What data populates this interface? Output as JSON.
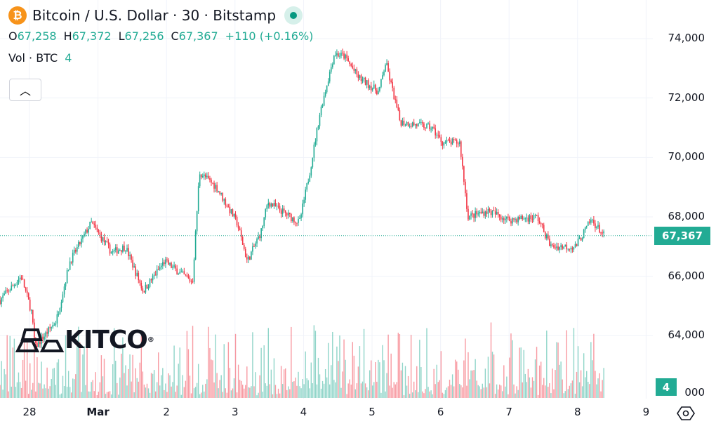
{
  "header": {
    "symbol_icon": "bitcoin-icon",
    "title": "Bitcoin / U.S. Dollar · 30 · Bitstamp",
    "market_status": "open",
    "ohlc": {
      "o_label": "O",
      "o": "67,258",
      "h_label": "H",
      "h": "67,372",
      "l_label": "L",
      "l": "67,256",
      "c_label": "C",
      "c": "67,367",
      "change": "+110 (+0.16%)"
    },
    "volume": {
      "label": "Vol · BTC",
      "value": "4"
    }
  },
  "colors": {
    "up": "#22ab94",
    "down": "#f23645",
    "accent": "#22ab94",
    "grid": "#f0f3fa"
  },
  "price_axis": {
    "labels": [
      "74,000",
      "72,000",
      "70,000",
      "68,000",
      "66,000",
      "64,000",
      "000"
    ],
    "current_price": "67,367",
    "current_volume": "4"
  },
  "time_axis": {
    "labels": [
      "28",
      "Mar",
      "2",
      "3",
      "4",
      "5",
      "6",
      "7",
      "8",
      "9"
    ],
    "settings_icon": "gear-hexagon-icon"
  },
  "logo": {
    "text": "KITCO"
  },
  "chart_data": {
    "type": "candlestick",
    "interval": "30",
    "ylim": [
      62000,
      75000
    ],
    "price_ticks": [
      74000,
      72000,
      70000,
      68000,
      66000,
      64000
    ],
    "path_day_price": [
      [
        -0.43,
        65200
      ],
      [
        -0.12,
        66000
      ],
      [
        0.03,
        64800
      ],
      [
        0.08,
        63600
      ],
      [
        0.39,
        64500
      ],
      [
        0.59,
        66500
      ],
      [
        0.9,
        67800
      ],
      [
        1.2,
        66800
      ],
      [
        1.4,
        67000
      ],
      [
        1.66,
        65500
      ],
      [
        1.97,
        66500
      ],
      [
        2.38,
        65800
      ],
      [
        2.48,
        69500
      ],
      [
        2.73,
        69000
      ],
      [
        3.03,
        67800
      ],
      [
        3.18,
        66500
      ],
      [
        3.38,
        67500
      ],
      [
        3.48,
        68500
      ],
      [
        3.94,
        67800
      ],
      [
        4.09,
        69500
      ],
      [
        4.24,
        71500
      ],
      [
        4.45,
        73500
      ],
      [
        4.6,
        73400
      ],
      [
        4.8,
        72700
      ],
      [
        5.1,
        72200
      ],
      [
        5.2,
        73200
      ],
      [
        5.41,
        71200
      ],
      [
        5.87,
        71000
      ],
      [
        6.03,
        70500
      ],
      [
        6.28,
        70500
      ],
      [
        6.4,
        68000
      ],
      [
        6.69,
        68200
      ],
      [
        7.0,
        67900
      ],
      [
        7.41,
        68000
      ],
      [
        7.61,
        67000
      ],
      [
        7.97,
        67000
      ],
      [
        8.2,
        67900
      ],
      [
        8.39,
        67367
      ]
    ],
    "last_price": 67367
  }
}
